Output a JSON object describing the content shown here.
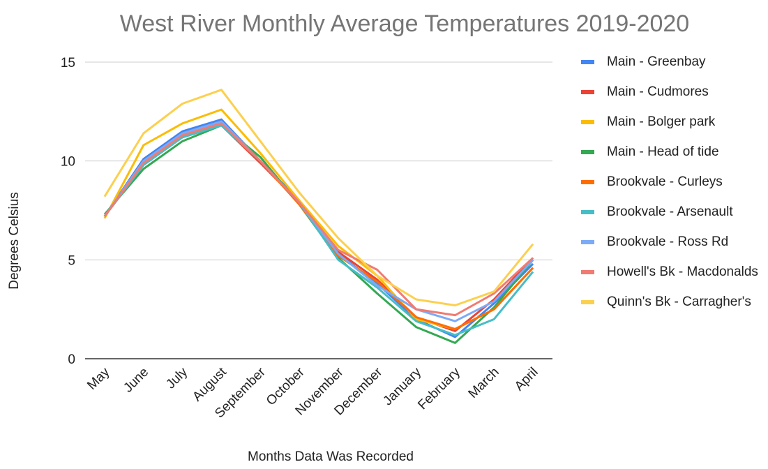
{
  "chart_data": {
    "type": "line",
    "title": "West River Monthly Average Temperatures 2019-2020",
    "x_label": "Months Data Was Recorded",
    "y_label": "Degrees Celsius",
    "categories": [
      "May",
      "June",
      "July",
      "August",
      "September",
      "October",
      "November",
      "December",
      "January",
      "February",
      "March",
      "April"
    ],
    "ylim": [
      0,
      15
    ],
    "yticks": [
      0,
      5,
      10,
      15
    ],
    "grid": true,
    "legend": "right",
    "series": [
      {
        "name": "Main - Greenbay",
        "color": "#4285f4",
        "values": [
          7.2,
          10.1,
          11.5,
          12.1,
          10.0,
          8.0,
          5.3,
          3.8,
          2.0,
          1.1,
          2.8,
          4.8
        ]
      },
      {
        "name": "Main - Cudmores",
        "color": "#ea4335",
        "values": [
          7.2,
          9.8,
          11.2,
          11.8,
          9.9,
          7.9,
          5.4,
          4.0,
          2.1,
          1.4,
          3.0,
          5.1
        ]
      },
      {
        "name": "Main - Bolger park",
        "color": "#fbbc04",
        "values": [
          7.1,
          10.8,
          11.9,
          12.6,
          10.4,
          8.0,
          5.7,
          4.2,
          2.0,
          1.5,
          2.5,
          4.6
        ]
      },
      {
        "name": "Main - Head of tide",
        "color": "#34a853",
        "values": [
          7.3,
          9.6,
          11.0,
          11.8,
          10.2,
          7.8,
          5.1,
          3.3,
          1.6,
          0.8,
          2.6,
          5.0
        ]
      },
      {
        "name": "Brookvale - Curleys",
        "color": "#ff6d01",
        "values": [
          7.2,
          9.9,
          11.3,
          11.8,
          10.0,
          7.8,
          5.2,
          3.9,
          2.1,
          1.5,
          2.5,
          4.6
        ]
      },
      {
        "name": "Brookvale - Arsenault",
        "color": "#46bdc6",
        "values": [
          7.2,
          9.8,
          11.2,
          11.8,
          10.0,
          7.9,
          5.0,
          3.6,
          1.9,
          1.2,
          2.0,
          4.4
        ]
      },
      {
        "name": "Brookvale - Ross Rd",
        "color": "#7baaf7",
        "values": [
          7.2,
          10.0,
          11.4,
          12.0,
          10.0,
          7.9,
          5.3,
          3.7,
          2.5,
          1.9,
          2.9,
          5.0
        ]
      },
      {
        "name": "Howell's Bk - Macdonalds",
        "color": "#f07b72",
        "values": [
          7.2,
          9.9,
          11.3,
          11.9,
          10.0,
          7.9,
          5.5,
          4.5,
          2.5,
          2.2,
          3.3,
          5.1
        ]
      },
      {
        "name": "Quinn's Bk - Carragher's",
        "color": "#fcd04f",
        "values": [
          8.2,
          11.4,
          12.9,
          13.6,
          11.0,
          8.4,
          6.1,
          4.2,
          3.0,
          2.7,
          3.4,
          5.8
        ]
      }
    ]
  }
}
